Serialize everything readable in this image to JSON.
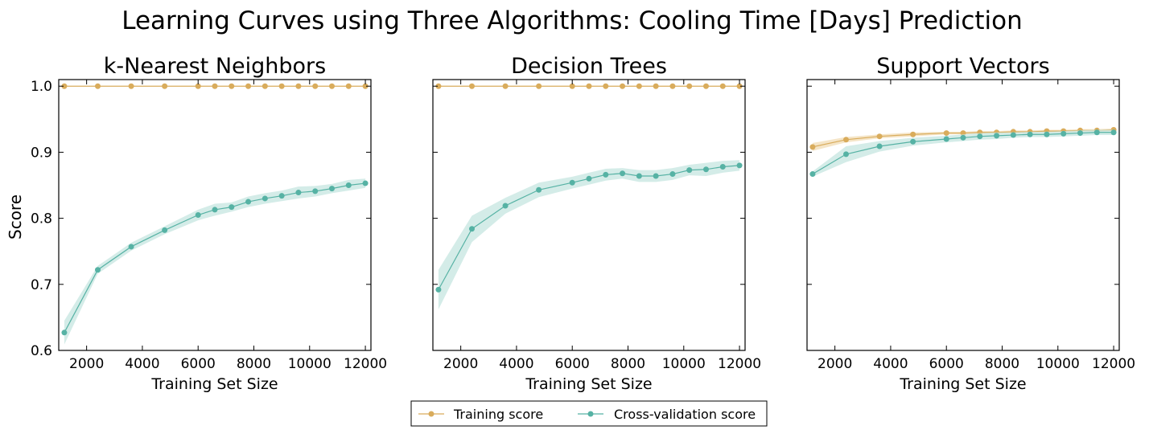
{
  "figure": {
    "title": "Learning Curves using Three Algorithms: Cooling Time [Days] Prediction",
    "ylabel": "Score"
  },
  "legend": {
    "placement": "bottom-center",
    "items": [
      {
        "label": "Training score",
        "color": "#d9ac5c"
      },
      {
        "label": "Cross-validation score",
        "color": "#56b2a4"
      }
    ]
  },
  "colors": {
    "training": "#d9ac5c",
    "training_band": "#f2dcb4",
    "cv": "#56b2a4",
    "cv_band": "#c6e6e0"
  },
  "chart_data": [
    {
      "type": "line",
      "title": "k-Nearest Neighbors",
      "xlabel": "Training Set Size",
      "ylabel": "Score",
      "xlim": [
        1000,
        12200
      ],
      "ylim": [
        0.6,
        1.01
      ],
      "xticks": [
        2000,
        4000,
        6000,
        8000,
        10000,
        12000
      ],
      "yticks": [
        "0.6",
        "0.7",
        "0.8",
        "0.9",
        "1.0"
      ],
      "show_ytick_labels": true,
      "grid": false,
      "x": [
        1200,
        2400,
        3600,
        4800,
        6000,
        6600,
        7200,
        7800,
        8400,
        9000,
        9600,
        10200,
        10800,
        11400,
        12000
      ],
      "series": [
        {
          "name": "Training score",
          "values": [
            1.0,
            1.0,
            1.0,
            1.0,
            1.0,
            1.0,
            1.0,
            1.0,
            1.0,
            1.0,
            1.0,
            1.0,
            1.0,
            1.0,
            1.0
          ],
          "band": [
            0.0,
            0.0,
            0.0,
            0.0,
            0.0,
            0.0,
            0.0,
            0.0,
            0.0,
            0.0,
            0.0,
            0.0,
            0.0,
            0.0,
            0.0
          ]
        },
        {
          "name": "Cross-validation score",
          "values": [
            0.627,
            0.722,
            0.757,
            0.782,
            0.805,
            0.813,
            0.817,
            0.825,
            0.83,
            0.834,
            0.839,
            0.841,
            0.845,
            0.85,
            0.853
          ],
          "band": [
            0.018,
            0.006,
            0.006,
            0.006,
            0.008,
            0.009,
            0.007,
            0.008,
            0.008,
            0.008,
            0.009,
            0.008,
            0.007,
            0.008,
            0.007
          ]
        }
      ]
    },
    {
      "type": "line",
      "title": "Decision Trees",
      "xlabel": "Training Set Size",
      "ylabel": "",
      "xlim": [
        1000,
        12200
      ],
      "ylim": [
        0.6,
        1.01
      ],
      "xticks": [
        2000,
        4000,
        6000,
        8000,
        10000,
        12000
      ],
      "yticks": [
        "0.6",
        "0.7",
        "0.8",
        "0.9",
        "1.0"
      ],
      "show_ytick_labels": false,
      "grid": false,
      "x": [
        1200,
        2400,
        3600,
        4800,
        6000,
        6600,
        7200,
        7800,
        8400,
        9000,
        9600,
        10200,
        10800,
        11400,
        12000
      ],
      "series": [
        {
          "name": "Training score",
          "values": [
            1.0,
            1.0,
            1.0,
            1.0,
            1.0,
            1.0,
            1.0,
            1.0,
            1.0,
            1.0,
            1.0,
            1.0,
            1.0,
            1.0,
            1.0
          ],
          "band": [
            0.0,
            0.0,
            0.0,
            0.0,
            0.0,
            0.0,
            0.0,
            0.0,
            0.0,
            0.0,
            0.0,
            0.0,
            0.0,
            0.0,
            0.0
          ]
        },
        {
          "name": "Cross-validation score",
          "values": [
            0.692,
            0.784,
            0.819,
            0.843,
            0.854,
            0.86,
            0.866,
            0.868,
            0.864,
            0.864,
            0.867,
            0.873,
            0.874,
            0.878,
            0.88
          ],
          "band": [
            0.03,
            0.02,
            0.012,
            0.011,
            0.009,
            0.009,
            0.009,
            0.008,
            0.009,
            0.009,
            0.009,
            0.008,
            0.01,
            0.009,
            0.008
          ]
        }
      ]
    },
    {
      "type": "line",
      "title": "Support Vectors",
      "xlabel": "Training Set Size",
      "ylabel": "",
      "xlim": [
        1000,
        12200
      ],
      "ylim": [
        0.6,
        1.01
      ],
      "xticks": [
        2000,
        4000,
        6000,
        8000,
        10000,
        12000
      ],
      "yticks": [
        "0.6",
        "0.7",
        "0.8",
        "0.9",
        "1.0"
      ],
      "show_ytick_labels": false,
      "grid": false,
      "x": [
        1200,
        2400,
        3600,
        4800,
        6000,
        6600,
        7200,
        7800,
        8400,
        9000,
        9600,
        10200,
        10800,
        11400,
        12000
      ],
      "series": [
        {
          "name": "Training score",
          "values": [
            0.908,
            0.919,
            0.924,
            0.927,
            0.929,
            0.929,
            0.93,
            0.93,
            0.931,
            0.931,
            0.932,
            0.932,
            0.933,
            0.933,
            0.934
          ],
          "band": [
            0.006,
            0.004,
            0.003,
            0.003,
            0.002,
            0.002,
            0.002,
            0.002,
            0.002,
            0.002,
            0.002,
            0.002,
            0.002,
            0.002,
            0.002
          ]
        },
        {
          "name": "Cross-validation score",
          "values": [
            0.867,
            0.897,
            0.909,
            0.916,
            0.92,
            0.922,
            0.924,
            0.925,
            0.926,
            0.927,
            0.927,
            0.928,
            0.929,
            0.93,
            0.93
          ],
          "band": [
            0.004,
            0.012,
            0.008,
            0.006,
            0.005,
            0.005,
            0.005,
            0.005,
            0.004,
            0.004,
            0.004,
            0.004,
            0.004,
            0.004,
            0.004
          ]
        }
      ]
    }
  ]
}
